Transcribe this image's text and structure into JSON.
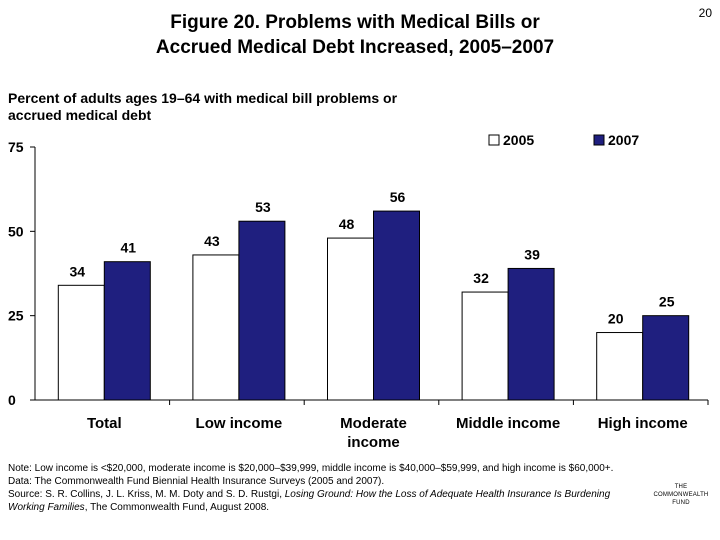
{
  "page_number": "20",
  "title_line1": "Figure 20. Problems with Medical Bills or",
  "title_line2": "Accrued Medical Debt Increased, 2005–2007",
  "subtitle_line1": "Percent of adults ages 19–64 with medical bill problems or",
  "subtitle_line2": "accrued medical debt",
  "chart_data": {
    "type": "bar",
    "categories": [
      "Total",
      "Low income",
      "Moderate income",
      "Middle income",
      "High income"
    ],
    "category_lines": [
      [
        "Total"
      ],
      [
        "Low income"
      ],
      [
        "Moderate",
        "income"
      ],
      [
        "Middle income"
      ],
      [
        "High income"
      ]
    ],
    "series": [
      {
        "name": "2005",
        "values": [
          34,
          43,
          48,
          32,
          20
        ],
        "color": "#ffffff"
      },
      {
        "name": "2007",
        "values": [
          41,
          53,
          56,
          39,
          25
        ],
        "color": "#1f1f7f"
      }
    ],
    "ylim": [
      0,
      75
    ],
    "yticks": [
      0,
      25,
      50,
      75
    ],
    "title": "",
    "xlabel": "",
    "ylabel": "",
    "legend_position": "top-right",
    "grid": false
  },
  "notes": {
    "note": "Note: Low income is <$20,000, moderate income is $20,000–$39,999, middle income is $40,000–$59,999, and high income is $60,000+.",
    "data": "Data: The Commonwealth Fund Biennial Health Insurance Surveys (2005 and 2007).",
    "source_prefix": "Source: S. R. Collins, J. L. Kriss, M. M. Doty and S. D. Rustgi, ",
    "source_title": "Losing Ground: How the Loss of Adequate Health Insurance Is Burdening Working Families",
    "source_suffix": ", The Commonwealth Fund, August 2008."
  },
  "logo": {
    "line1": "THE",
    "line2": "COMMONWEALTH",
    "line3": "FUND"
  }
}
